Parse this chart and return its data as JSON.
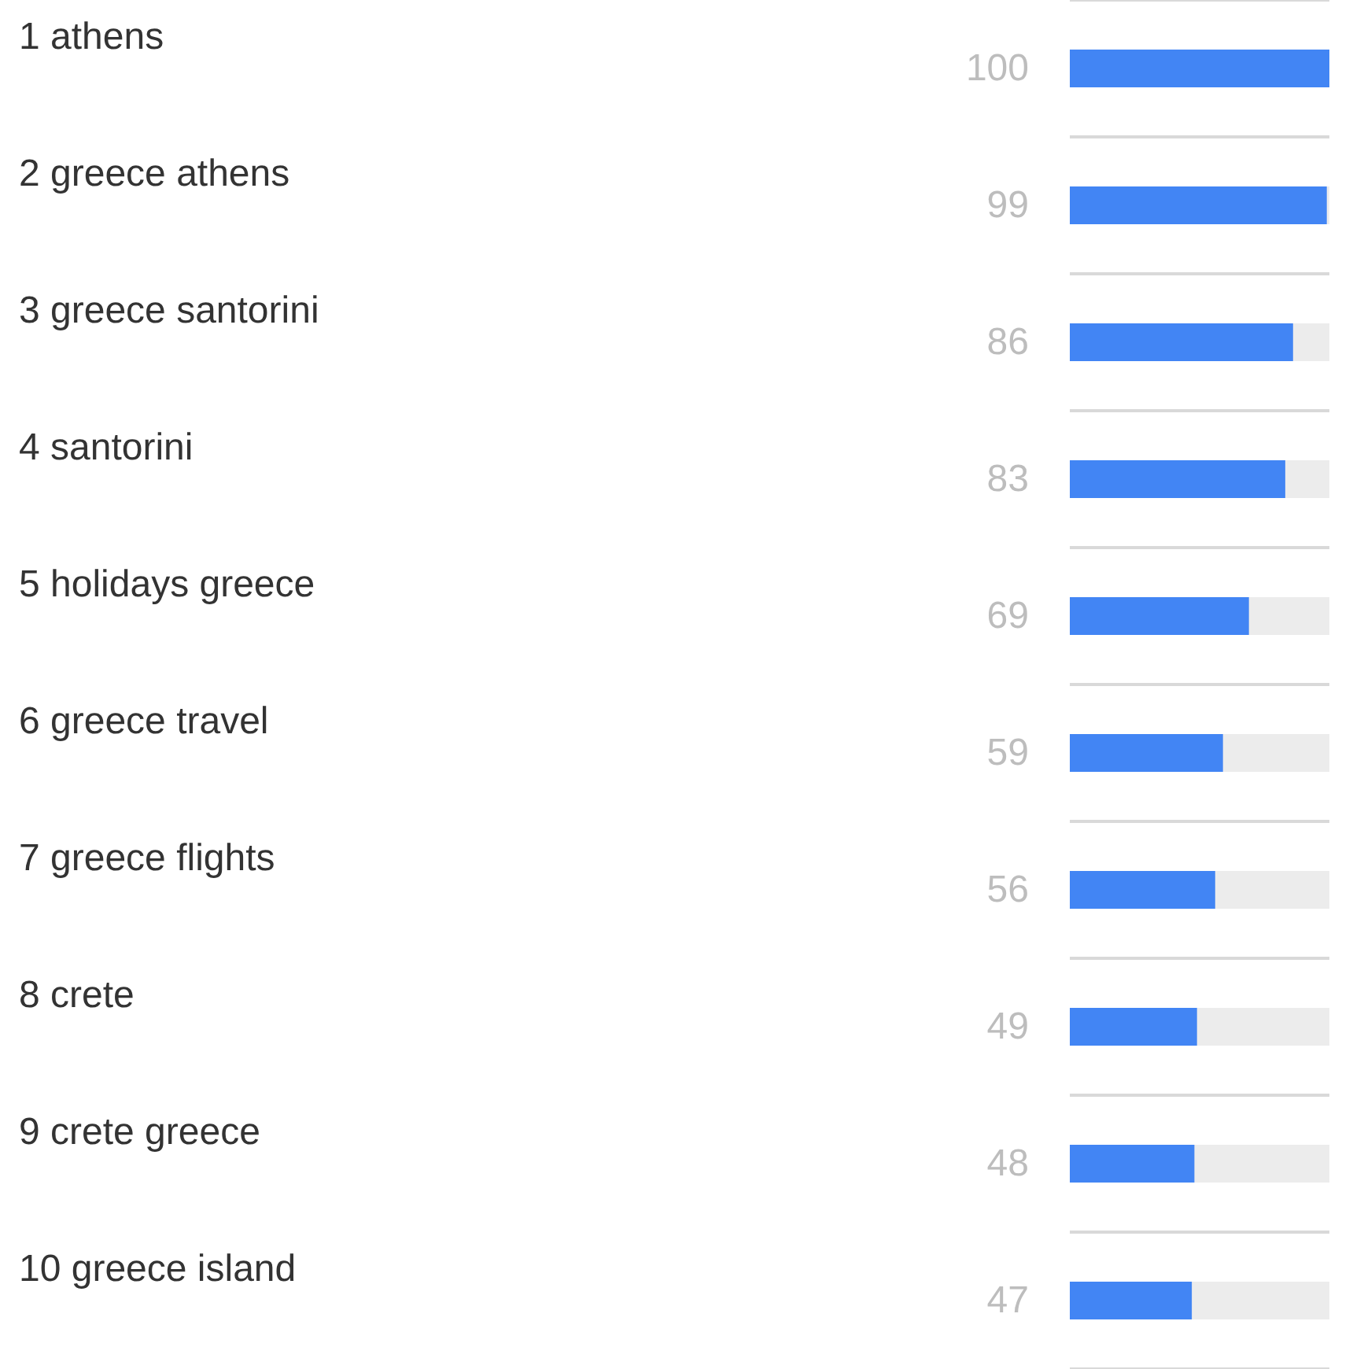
{
  "chart_data": {
    "type": "bar",
    "orientation": "horizontal",
    "categories": [
      "1 athens",
      "2 greece athens",
      "3 greece santorini",
      "4 santorini",
      "5 holidays greece",
      "6 greece travel",
      "7 greece flights",
      "8 crete",
      "9 crete greece",
      "10 greece island"
    ],
    "values": [
      100,
      99,
      86,
      83,
      69,
      59,
      56,
      49,
      48,
      47
    ],
    "color": "#4285f4",
    "data_labels": true,
    "grid": "y"
  }
}
